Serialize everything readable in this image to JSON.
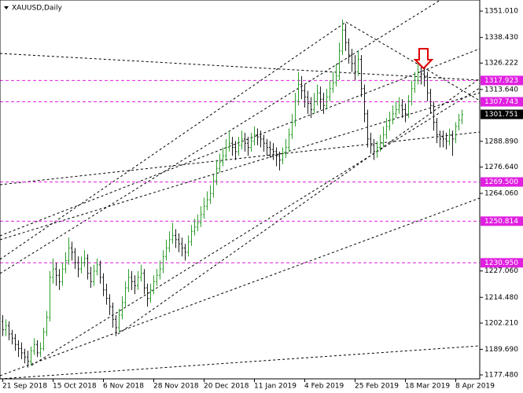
{
  "chart_data": {
    "type": "ohlc",
    "title": "XAUUSD,Daily",
    "categories": [
      "21 Sep 2018",
      null,
      null,
      null,
      null,
      null,
      null,
      null,
      null,
      null,
      null,
      null,
      null,
      null,
      null,
      null,
      "15 Oct 2018",
      null,
      null,
      null,
      null,
      null,
      null,
      null,
      null,
      null,
      null,
      null,
      null,
      null,
      null,
      null,
      "6 Nov 2018",
      null,
      null,
      null,
      null,
      null,
      null,
      null,
      null,
      null,
      null,
      null,
      null,
      null,
      null,
      null,
      "28 Nov 2018",
      null,
      null,
      null,
      null,
      null,
      null,
      null,
      null,
      null,
      null,
      null,
      null,
      null,
      null,
      null,
      "20 Dec 2018",
      null,
      null,
      null,
      null,
      null,
      null,
      null,
      null,
      null,
      null,
      null,
      null,
      null,
      null,
      null,
      "11 Jan 2019",
      null,
      null,
      null,
      null,
      null,
      null,
      null,
      null,
      null,
      null,
      null,
      null,
      null,
      null,
      null,
      "4 Feb 2019",
      null,
      null,
      null,
      null,
      null,
      null,
      null,
      null,
      null,
      null,
      null,
      null,
      null,
      null,
      null,
      "25 Feb 2019",
      null,
      null,
      null,
      null,
      null,
      null,
      null,
      null,
      null,
      null,
      null,
      null,
      null,
      null,
      null,
      "18 Mar 2019",
      null,
      null,
      null,
      null,
      null,
      null,
      null,
      null,
      null,
      null,
      null,
      null,
      null,
      null,
      null,
      "8 Apr 2019",
      null,
      null
    ],
    "ohlc": [
      [
        1203,
        1206,
        1196,
        1199
      ],
      [
        1199,
        1204,
        1196,
        1201
      ],
      [
        1201,
        1203,
        1194,
        1197
      ],
      [
        1197,
        1199,
        1192,
        1195
      ],
      [
        1195,
        1197,
        1189,
        1192
      ],
      [
        1192,
        1194,
        1186,
        1190
      ],
      [
        1190,
        1193,
        1185,
        1188
      ],
      [
        1188,
        1190,
        1183,
        1186
      ],
      [
        1186,
        1189,
        1181,
        1184
      ],
      [
        1184,
        1191,
        1182,
        1189
      ],
      [
        1189,
        1195,
        1187,
        1192
      ],
      [
        1192,
        1194,
        1186,
        1188
      ],
      [
        1188,
        1193,
        1186,
        1190
      ],
      [
        1190,
        1200,
        1189,
        1198
      ],
      [
        1198,
        1208,
        1196,
        1205
      ],
      [
        1205,
        1227,
        1203,
        1224
      ],
      [
        1224,
        1233,
        1221,
        1228
      ],
      [
        1228,
        1231,
        1220,
        1225
      ],
      [
        1225,
        1228,
        1218,
        1222
      ],
      [
        1222,
        1231,
        1220,
        1228
      ],
      [
        1228,
        1236,
        1226,
        1232
      ],
      [
        1232,
        1243,
        1230,
        1238
      ],
      [
        1238,
        1241,
        1232,
        1236
      ],
      [
        1236,
        1238,
        1228,
        1231
      ],
      [
        1231,
        1234,
        1224,
        1228
      ],
      [
        1228,
        1234,
        1226,
        1231
      ],
      [
        1231,
        1237,
        1229,
        1233
      ],
      [
        1233,
        1235,
        1223,
        1226
      ],
      [
        1226,
        1229,
        1219,
        1222
      ],
      [
        1222,
        1230,
        1220,
        1227
      ],
      [
        1227,
        1233,
        1225,
        1230
      ],
      [
        1230,
        1232,
        1221,
        1224
      ],
      [
        1224,
        1226,
        1215,
        1218
      ],
      [
        1218,
        1221,
        1211,
        1214
      ],
      [
        1214,
        1216,
        1206,
        1210
      ],
      [
        1210,
        1212,
        1200,
        1204
      ],
      [
        1204,
        1206,
        1196,
        1200
      ],
      [
        1200,
        1209,
        1198,
        1206
      ],
      [
        1206,
        1215,
        1204,
        1212
      ],
      [
        1212,
        1222,
        1210,
        1219
      ],
      [
        1219,
        1228,
        1217,
        1224
      ],
      [
        1224,
        1227,
        1218,
        1222
      ],
      [
        1222,
        1225,
        1216,
        1220
      ],
      [
        1220,
        1227,
        1218,
        1224
      ],
      [
        1224,
        1230,
        1222,
        1226
      ],
      [
        1226,
        1228,
        1216,
        1219
      ],
      [
        1219,
        1221,
        1210,
        1214
      ],
      [
        1214,
        1221,
        1212,
        1218
      ],
      [
        1218,
        1225,
        1216,
        1222
      ],
      [
        1222,
        1228,
        1220,
        1225
      ],
      [
        1225,
        1232,
        1223,
        1228
      ],
      [
        1228,
        1237,
        1226,
        1234
      ],
      [
        1234,
        1242,
        1232,
        1238
      ],
      [
        1238,
        1246,
        1236,
        1242
      ],
      [
        1242,
        1250,
        1240,
        1244
      ],
      [
        1244,
        1247,
        1238,
        1242
      ],
      [
        1242,
        1245,
        1236,
        1240
      ],
      [
        1240,
        1243,
        1234,
        1238
      ],
      [
        1238,
        1240,
        1232,
        1236
      ],
      [
        1236,
        1244,
        1234,
        1241
      ],
      [
        1241,
        1249,
        1239,
        1246
      ],
      [
        1246,
        1252,
        1244,
        1248
      ],
      [
        1248,
        1254,
        1246,
        1250
      ],
      [
        1250,
        1258,
        1248,
        1254
      ],
      [
        1254,
        1262,
        1252,
        1258
      ],
      [
        1258,
        1265,
        1256,
        1261
      ],
      [
        1261,
        1268,
        1259,
        1264
      ],
      [
        1264,
        1273,
        1262,
        1270
      ],
      [
        1270,
        1280,
        1268,
        1276
      ],
      [
        1276,
        1283,
        1274,
        1279
      ],
      [
        1279,
        1286,
        1277,
        1282
      ],
      [
        1282,
        1290,
        1280,
        1286
      ],
      [
        1286,
        1294,
        1284,
        1288
      ],
      [
        1288,
        1291,
        1282,
        1286
      ],
      [
        1286,
        1289,
        1280,
        1284
      ],
      [
        1284,
        1291,
        1282,
        1287
      ],
      [
        1287,
        1294,
        1285,
        1290
      ],
      [
        1290,
        1293,
        1284,
        1288
      ],
      [
        1288,
        1291,
        1282,
        1286
      ],
      [
        1286,
        1293,
        1284,
        1289
      ],
      [
        1289,
        1296,
        1287,
        1292
      ],
      [
        1292,
        1295,
        1287,
        1291
      ],
      [
        1291,
        1294,
        1286,
        1290
      ],
      [
        1290,
        1292,
        1284,
        1288
      ],
      [
        1288,
        1290,
        1282,
        1286
      ],
      [
        1286,
        1289,
        1281,
        1285
      ],
      [
        1285,
        1288,
        1280,
        1284
      ],
      [
        1284,
        1286,
        1277,
        1282
      ],
      [
        1282,
        1284,
        1275,
        1280
      ],
      [
        1280,
        1286,
        1278,
        1283
      ],
      [
        1283,
        1290,
        1281,
        1286
      ],
      [
        1286,
        1295,
        1284,
        1292
      ],
      [
        1292,
        1302,
        1290,
        1298
      ],
      [
        1298,
        1312,
        1296,
        1308
      ],
      [
        1308,
        1322,
        1306,
        1316
      ],
      [
        1316,
        1320,
        1309,
        1313
      ],
      [
        1313,
        1316,
        1305,
        1310
      ],
      [
        1310,
        1313,
        1302,
        1307
      ],
      [
        1307,
        1310,
        1300,
        1304
      ],
      [
        1304,
        1312,
        1302,
        1308
      ],
      [
        1308,
        1316,
        1306,
        1312
      ],
      [
        1312,
        1315,
        1304,
        1309
      ],
      [
        1309,
        1312,
        1302,
        1306
      ],
      [
        1306,
        1314,
        1304,
        1310
      ],
      [
        1310,
        1318,
        1308,
        1314
      ],
      [
        1314,
        1322,
        1312,
        1317
      ],
      [
        1317,
        1326,
        1315,
        1320
      ],
      [
        1320,
        1336,
        1318,
        1332
      ],
      [
        1332,
        1347,
        1330,
        1342
      ],
      [
        1342,
        1345,
        1332,
        1336
      ],
      [
        1336,
        1338,
        1326,
        1330
      ],
      [
        1330,
        1333,
        1322,
        1326
      ],
      [
        1326,
        1330,
        1318,
        1322
      ],
      [
        1322,
        1332,
        1320,
        1328
      ],
      [
        1328,
        1330,
        1310,
        1314
      ],
      [
        1314,
        1316,
        1298,
        1302
      ],
      [
        1302,
        1304,
        1286,
        1290
      ],
      [
        1290,
        1293,
        1283,
        1287
      ],
      [
        1287,
        1290,
        1280,
        1284
      ],
      [
        1284,
        1289,
        1281,
        1286
      ],
      [
        1286,
        1292,
        1284,
        1288
      ],
      [
        1288,
        1296,
        1286,
        1292
      ],
      [
        1292,
        1300,
        1290,
        1296
      ],
      [
        1296,
        1303,
        1294,
        1299
      ],
      [
        1299,
        1306,
        1297,
        1302
      ],
      [
        1302,
        1308,
        1300,
        1304
      ],
      [
        1304,
        1310,
        1302,
        1306
      ],
      [
        1306,
        1309,
        1300,
        1304
      ],
      [
        1304,
        1307,
        1298,
        1302
      ],
      [
        1302,
        1311,
        1300,
        1308
      ],
      [
        1308,
        1318,
        1306,
        1314
      ],
      [
        1314,
        1322,
        1312,
        1318
      ],
      [
        1318,
        1326,
        1316,
        1322
      ],
      [
        1322,
        1325,
        1316,
        1321
      ],
      [
        1321,
        1324,
        1315,
        1320
      ],
      [
        1320,
        1322,
        1308,
        1312
      ],
      [
        1312,
        1314,
        1302,
        1306
      ],
      [
        1306,
        1308,
        1294,
        1298
      ],
      [
        1298,
        1300,
        1288,
        1292
      ],
      [
        1292,
        1294,
        1286,
        1290
      ],
      [
        1291,
        1294,
        1286,
        1290
      ],
      [
        1290,
        1293,
        1285,
        1289
      ],
      [
        1289,
        1295,
        1287,
        1292
      ],
      [
        1292,
        1294,
        1282,
        1290
      ],
      [
        1290,
        1298,
        1288,
        1296
      ],
      [
        1296,
        1302,
        1294,
        1299
      ],
      [
        1299,
        1304,
        1297,
        1301.751
      ]
    ],
    "up_color": "#2e9e2e",
    "down_color": "#1a1a1a",
    "ylim": [
      1175.6,
      1356.3
    ],
    "yticks": [
      {
        "value": 1351.01,
        "label": "1351.010"
      },
      {
        "value": 1338.43,
        "label": "1338.430"
      },
      1326.222,
      {
        "value": 1313.64,
        "label": "1313.640"
      },
      {
        "value": 1288.89,
        "label": "1288.890"
      },
      {
        "value": 1276.64,
        "label": "1276.640"
      },
      {
        "value": 1264.06,
        "label": "1264.060"
      },
      {
        "value": 1227.06,
        "label": "1227.060"
      },
      {
        "value": 1214.48,
        "label": "1214.480"
      },
      {
        "value": 1202.21,
        "label": "1202.210"
      },
      {
        "value": 1189.69,
        "label": "1189.690"
      },
      {
        "value": 1177.48,
        "label": "1177.480"
      }
    ],
    "levels": [
      1317.923,
      1307.743,
      {
        "value": 1269.5,
        "label": "1269.500"
      },
      1250.814,
      {
        "value": 1230.95,
        "label": "1230.950"
      }
    ],
    "level_color": "#e020e0",
    "current_price": 1301.751
  }
}
